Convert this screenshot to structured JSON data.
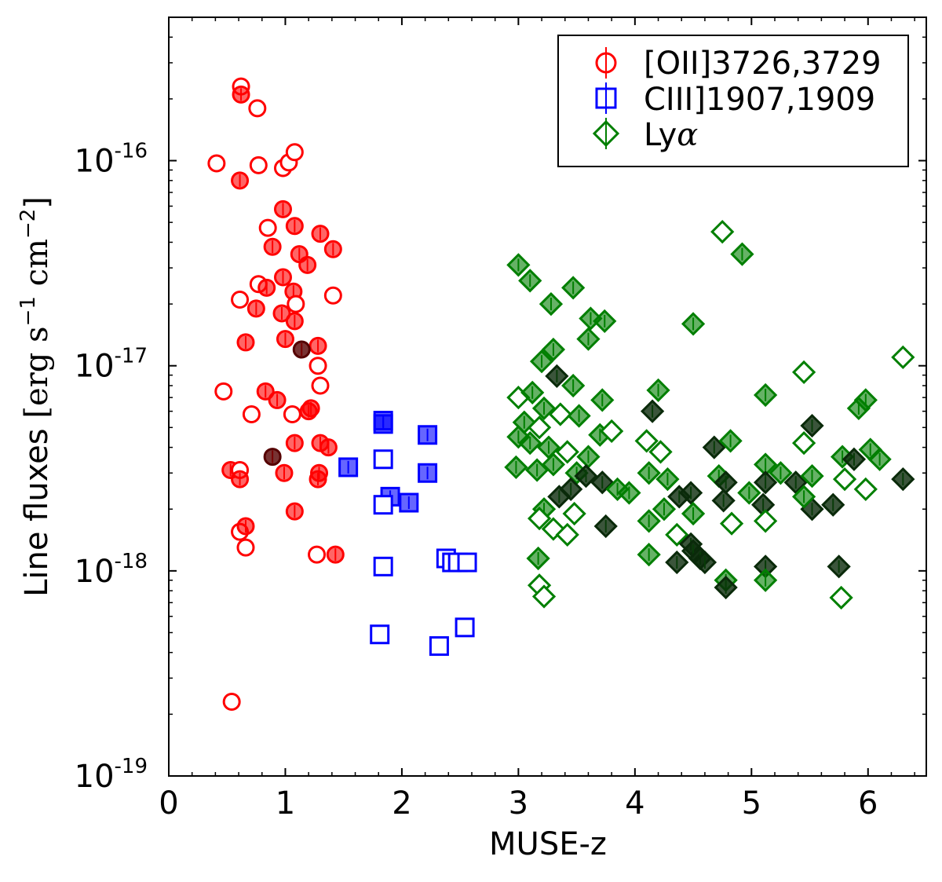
{
  "chart_data": {
    "type": "scatter",
    "title": "",
    "xlabel": "MUSE-z",
    "ylabel": "Line fluxes [erg s⁻¹ cm⁻²]",
    "ylabel_main": "Line fluxes ",
    "ylabel_units": "[erg s",
    "ylabel_sup1": "−1",
    "ylabel_cm": " cm",
    "ylabel_sup2": "−2",
    "ylabel_close": "]",
    "xscale": "linear",
    "yscale": "log",
    "xlim": [
      0,
      6.5
    ],
    "ylim": [
      1e-19,
      5e-16
    ],
    "x_ticks": [
      "0",
      "1",
      "2",
      "3",
      "4",
      "5",
      "6"
    ],
    "y_ticks": [
      {
        "base": "10",
        "exp": "-16",
        "value": 1e-16
      },
      {
        "base": "10",
        "exp": "-17",
        "value": 1e-17
      },
      {
        "base": "10",
        "exp": "-18",
        "value": 1e-18
      },
      {
        "base": "10",
        "exp": "-19",
        "value": 1e-19
      }
    ],
    "legend": {
      "position": "top-right",
      "entries": [
        {
          "label": "[OII]3726,3729",
          "color": "#ff0000",
          "marker": "circle"
        },
        {
          "label": "CIII]1907,1909",
          "color": "#0000ff",
          "marker": "square"
        },
        {
          "label": "Ly",
          "greek": "α",
          "color": "#007f00",
          "marker": "diamond"
        }
      ]
    },
    "series": [
      {
        "name": "[OII]3726,3729",
        "marker": "circle",
        "color": "#ff0000",
        "points": [
          {
            "x": 0.62,
            "y": 2.3e-16,
            "f": "o"
          },
          {
            "x": 0.62,
            "y": 2.1e-16,
            "f": "f"
          },
          {
            "x": 0.76,
            "y": 1.8e-16,
            "f": "o"
          },
          {
            "x": 0.41,
            "y": 9.7e-17,
            "f": "o"
          },
          {
            "x": 0.61,
            "y": 8e-17,
            "f": "f"
          },
          {
            "x": 0.77,
            "y": 9.5e-17,
            "f": "o"
          },
          {
            "x": 0.98,
            "y": 9.2e-17,
            "f": "o"
          },
          {
            "x": 1.03,
            "y": 9.8e-17,
            "f": "o"
          },
          {
            "x": 1.08,
            "y": 1.1e-16,
            "f": "o"
          },
          {
            "x": 0.98,
            "y": 5.8e-17,
            "f": "f"
          },
          {
            "x": 1.08,
            "y": 4.8e-17,
            "f": "f"
          },
          {
            "x": 0.85,
            "y": 4.7e-17,
            "f": "o"
          },
          {
            "x": 1.3,
            "y": 4.4e-17,
            "f": "f"
          },
          {
            "x": 1.41,
            "y": 3.7e-17,
            "f": "f"
          },
          {
            "x": 0.89,
            "y": 3.8e-17,
            "f": "f"
          },
          {
            "x": 1.12,
            "y": 3.5e-17,
            "f": "f"
          },
          {
            "x": 1.19,
            "y": 3.1e-17,
            "f": "f"
          },
          {
            "x": 0.98,
            "y": 2.7e-17,
            "f": "f"
          },
          {
            "x": 0.77,
            "y": 2.5e-17,
            "f": "o"
          },
          {
            "x": 0.84,
            "y": 2.4e-17,
            "f": "f"
          },
          {
            "x": 1.07,
            "y": 2.3e-17,
            "f": "f"
          },
          {
            "x": 0.61,
            "y": 2.1e-17,
            "f": "o"
          },
          {
            "x": 1.41,
            "y": 2.2e-17,
            "f": "o"
          },
          {
            "x": 1.09,
            "y": 2e-17,
            "f": "o"
          },
          {
            "x": 0.75,
            "y": 1.9e-17,
            "f": "f"
          },
          {
            "x": 0.97,
            "y": 1.8e-17,
            "f": "f"
          },
          {
            "x": 1.08,
            "y": 1.65e-17,
            "f": "f"
          },
          {
            "x": 1.0,
            "y": 1.35e-17,
            "f": "f"
          },
          {
            "x": 0.66,
            "y": 1.3e-17,
            "f": "f"
          },
          {
            "x": 1.28,
            "y": 1.25e-17,
            "f": "f"
          },
          {
            "x": 1.14,
            "y": 1.2e-17,
            "f": "d"
          },
          {
            "x": 1.28,
            "y": 1e-17,
            "f": "o"
          },
          {
            "x": 1.3,
            "y": 8e-18,
            "f": "o"
          },
          {
            "x": 0.83,
            "y": 7.5e-18,
            "f": "f"
          },
          {
            "x": 0.47,
            "y": 7.5e-18,
            "f": "o"
          },
          {
            "x": 0.93,
            "y": 6.8e-18,
            "f": "f"
          },
          {
            "x": 1.22,
            "y": 6.2e-18,
            "f": "f"
          },
          {
            "x": 0.71,
            "y": 5.8e-18,
            "f": "o"
          },
          {
            "x": 1.06,
            "y": 5.8e-18,
            "f": "o"
          },
          {
            "x": 1.2,
            "y": 6e-18,
            "f": "f"
          },
          {
            "x": 1.08,
            "y": 4.2e-18,
            "f": "f"
          },
          {
            "x": 1.3,
            "y": 4.2e-18,
            "f": "f"
          },
          {
            "x": 1.37,
            "y": 4e-18,
            "f": "f"
          },
          {
            "x": 0.89,
            "y": 3.6e-18,
            "f": "d"
          },
          {
            "x": 0.53,
            "y": 3.1e-18,
            "f": "f"
          },
          {
            "x": 0.61,
            "y": 3.1e-18,
            "f": "o"
          },
          {
            "x": 0.61,
            "y": 2.8e-18,
            "f": "f"
          },
          {
            "x": 0.99,
            "y": 3e-18,
            "f": "f"
          },
          {
            "x": 1.29,
            "y": 3e-18,
            "f": "f"
          },
          {
            "x": 1.28,
            "y": 2.8e-18,
            "f": "f"
          },
          {
            "x": 0.61,
            "y": 1.55e-18,
            "f": "o"
          },
          {
            "x": 0.66,
            "y": 1.65e-18,
            "f": "f"
          },
          {
            "x": 0.66,
            "y": 1.3e-18,
            "f": "o"
          },
          {
            "x": 1.08,
            "y": 1.95e-18,
            "f": "f"
          },
          {
            "x": 1.27,
            "y": 1.2e-18,
            "f": "o"
          },
          {
            "x": 1.43,
            "y": 1.2e-18,
            "f": "f"
          },
          {
            "x": 0.54,
            "y": 2.3e-19,
            "f": "o"
          }
        ]
      },
      {
        "name": "CIII]1907,1909",
        "marker": "square",
        "color": "#0000ff",
        "points": [
          {
            "x": 1.54,
            "y": 3.2e-18,
            "f": "f"
          },
          {
            "x": 1.84,
            "y": 5.4e-18,
            "f": "f"
          },
          {
            "x": 1.84,
            "y": 5.2e-18,
            "f": "f"
          },
          {
            "x": 2.22,
            "y": 4.6e-18,
            "f": "f"
          },
          {
            "x": 2.22,
            "y": 3e-18,
            "f": "f"
          },
          {
            "x": 1.84,
            "y": 3.5e-18,
            "f": "o"
          },
          {
            "x": 1.9,
            "y": 2.3e-18,
            "f": "f"
          },
          {
            "x": 2.06,
            "y": 2.15e-18,
            "f": "f"
          },
          {
            "x": 1.84,
            "y": 2.1e-18,
            "f": "o"
          },
          {
            "x": 1.84,
            "y": 1.05e-18,
            "f": "o"
          },
          {
            "x": 1.81,
            "y": 4.9e-19,
            "f": "o"
          },
          {
            "x": 2.38,
            "y": 1.15e-18,
            "f": "o"
          },
          {
            "x": 2.43,
            "y": 1.1e-18,
            "f": "o"
          },
          {
            "x": 2.48,
            "y": 1.1e-18,
            "f": "o"
          },
          {
            "x": 2.56,
            "y": 1.1e-18,
            "f": "o"
          },
          {
            "x": 2.32,
            "y": 4.3e-19,
            "f": "o"
          },
          {
            "x": 2.54,
            "y": 5.3e-19,
            "f": "o"
          }
        ]
      },
      {
        "name": "Lyα",
        "marker": "diamond",
        "color": "#007f00",
        "points": [
          {
            "x": 3.0,
            "y": 3.1e-17,
            "f": "f"
          },
          {
            "x": 3.1,
            "y": 2.6e-17,
            "f": "f"
          },
          {
            "x": 3.28,
            "y": 2e-17,
            "f": "f"
          },
          {
            "x": 3.47,
            "y": 2.4e-17,
            "f": "f"
          },
          {
            "x": 3.62,
            "y": 1.7e-17,
            "f": "f"
          },
          {
            "x": 3.74,
            "y": 1.65e-17,
            "f": "f"
          },
          {
            "x": 3.3,
            "y": 1.2e-17,
            "f": "f"
          },
          {
            "x": 3.2,
            "y": 1.05e-17,
            "f": "f"
          },
          {
            "x": 3.6,
            "y": 1.35e-17,
            "f": "f"
          },
          {
            "x": 3.33,
            "y": 8.9e-18,
            "f": "d"
          },
          {
            "x": 3.47,
            "y": 8e-18,
            "f": "f"
          },
          {
            "x": 3.0,
            "y": 7e-18,
            "f": "o"
          },
          {
            "x": 3.12,
            "y": 7.4e-18,
            "f": "f"
          },
          {
            "x": 3.22,
            "y": 6.2e-18,
            "f": "f"
          },
          {
            "x": 3.36,
            "y": 5.8e-18,
            "f": "o"
          },
          {
            "x": 3.52,
            "y": 5.7e-18,
            "f": "f"
          },
          {
            "x": 3.72,
            "y": 6.8e-18,
            "f": "f"
          },
          {
            "x": 3.05,
            "y": 5.3e-18,
            "f": "f"
          },
          {
            "x": 3.18,
            "y": 5e-18,
            "f": "o"
          },
          {
            "x": 3.0,
            "y": 4.5e-18,
            "f": "f"
          },
          {
            "x": 3.1,
            "y": 4.2e-18,
            "f": "f"
          },
          {
            "x": 3.26,
            "y": 4e-18,
            "f": "f"
          },
          {
            "x": 3.42,
            "y": 3.8e-18,
            "f": "o"
          },
          {
            "x": 3.6,
            "y": 3.6e-18,
            "f": "f"
          },
          {
            "x": 3.7,
            "y": 4.6e-18,
            "f": "f"
          },
          {
            "x": 3.8,
            "y": 4.8e-18,
            "f": "o"
          },
          {
            "x": 2.98,
            "y": 3.2e-18,
            "f": "f"
          },
          {
            "x": 3.16,
            "y": 3.1e-18,
            "f": "f"
          },
          {
            "x": 3.3,
            "y": 3.3e-18,
            "f": "f"
          },
          {
            "x": 3.5,
            "y": 3e-18,
            "f": "f"
          },
          {
            "x": 3.58,
            "y": 2.9e-18,
            "f": "d"
          },
          {
            "x": 3.72,
            "y": 2.7e-18,
            "f": "d"
          },
          {
            "x": 3.85,
            "y": 2.5e-18,
            "f": "f"
          },
          {
            "x": 3.35,
            "y": 2.3e-18,
            "f": "d"
          },
          {
            "x": 3.45,
            "y": 2.5e-18,
            "f": "d"
          },
          {
            "x": 3.22,
            "y": 2e-18,
            "f": "f"
          },
          {
            "x": 3.48,
            "y": 1.9e-18,
            "f": "o"
          },
          {
            "x": 3.18,
            "y": 1.8e-18,
            "f": "o"
          },
          {
            "x": 3.3,
            "y": 1.6e-18,
            "f": "o"
          },
          {
            "x": 3.42,
            "y": 1.5e-18,
            "f": "o"
          },
          {
            "x": 3.75,
            "y": 1.65e-18,
            "f": "d"
          },
          {
            "x": 3.17,
            "y": 1.15e-18,
            "f": "f"
          },
          {
            "x": 3.18,
            "y": 8.5e-19,
            "f": "o"
          },
          {
            "x": 3.22,
            "y": 7.5e-19,
            "f": "o"
          },
          {
            "x": 3.95,
            "y": 2.4e-18,
            "f": "f"
          },
          {
            "x": 4.15,
            "y": 6e-18,
            "f": "d"
          },
          {
            "x": 4.2,
            "y": 7.6e-18,
            "f": "f"
          },
          {
            "x": 4.1,
            "y": 4.3e-18,
            "f": "o"
          },
          {
            "x": 4.22,
            "y": 3.8e-18,
            "f": "o"
          },
          {
            "x": 4.12,
            "y": 3e-18,
            "f": "f"
          },
          {
            "x": 4.28,
            "y": 2.8e-18,
            "f": "f"
          },
          {
            "x": 4.38,
            "y": 2.3e-18,
            "f": "d"
          },
          {
            "x": 4.25,
            "y": 2e-18,
            "f": "f"
          },
          {
            "x": 4.12,
            "y": 1.75e-18,
            "f": "f"
          },
          {
            "x": 4.36,
            "y": 1.5e-18,
            "f": "o"
          },
          {
            "x": 4.36,
            "y": 1.1e-18,
            "f": "d"
          },
          {
            "x": 4.12,
            "y": 1.2e-18,
            "f": "f"
          },
          {
            "x": 4.48,
            "y": 2.4e-18,
            "f": "d"
          },
          {
            "x": 4.5,
            "y": 1.9e-18,
            "f": "f"
          },
          {
            "x": 4.48,
            "y": 1.35e-18,
            "f": "d"
          },
          {
            "x": 4.5,
            "y": 1.25e-18,
            "f": "d"
          },
          {
            "x": 4.56,
            "y": 1.15e-18,
            "f": "d"
          },
          {
            "x": 4.6,
            "y": 1.1e-18,
            "f": "d"
          },
          {
            "x": 4.5,
            "y": 1.6e-17,
            "f": "f"
          },
          {
            "x": 4.75,
            "y": 4.5e-17,
            "f": "o"
          },
          {
            "x": 4.92,
            "y": 3.5e-17,
            "f": "f"
          },
          {
            "x": 4.68,
            "y": 4e-18,
            "f": "d"
          },
          {
            "x": 4.82,
            "y": 4.3e-18,
            "f": "f"
          },
          {
            "x": 4.72,
            "y": 2.9e-18,
            "f": "f"
          },
          {
            "x": 4.78,
            "y": 2.7e-18,
            "f": "d"
          },
          {
            "x": 4.76,
            "y": 2.2e-18,
            "f": "d"
          },
          {
            "x": 4.83,
            "y": 1.7e-18,
            "f": "o"
          },
          {
            "x": 4.78,
            "y": 9e-19,
            "f": "f"
          },
          {
            "x": 4.78,
            "y": 8.3e-19,
            "f": "d"
          },
          {
            "x": 4.98,
            "y": 2.4e-18,
            "f": "f"
          },
          {
            "x": 5.12,
            "y": 7.2e-18,
            "f": "f"
          },
          {
            "x": 5.12,
            "y": 3.3e-18,
            "f": "f"
          },
          {
            "x": 5.12,
            "y": 2.7e-18,
            "f": "d"
          },
          {
            "x": 5.1,
            "y": 2.1e-18,
            "f": "d"
          },
          {
            "x": 5.12,
            "y": 1.75e-18,
            "f": "o"
          },
          {
            "x": 5.12,
            "y": 1.05e-18,
            "f": "d"
          },
          {
            "x": 5.12,
            "y": 9e-19,
            "f": "f"
          },
          {
            "x": 5.25,
            "y": 3e-18,
            "f": "f"
          },
          {
            "x": 5.38,
            "y": 2.7e-18,
            "f": "d"
          },
          {
            "x": 5.45,
            "y": 9.3e-18,
            "f": "o"
          },
          {
            "x": 5.45,
            "y": 4.2e-18,
            "f": "o"
          },
          {
            "x": 5.52,
            "y": 5.1e-18,
            "f": "d"
          },
          {
            "x": 5.52,
            "y": 2e-18,
            "f": "d"
          },
          {
            "x": 5.52,
            "y": 2.9e-18,
            "f": "f"
          },
          {
            "x": 5.45,
            "y": 2.3e-18,
            "f": "f"
          },
          {
            "x": 5.7,
            "y": 2.1e-18,
            "f": "d"
          },
          {
            "x": 5.75,
            "y": 1.05e-18,
            "f": "d"
          },
          {
            "x": 5.77,
            "y": 7.4e-19,
            "f": "o"
          },
          {
            "x": 5.78,
            "y": 3.6e-18,
            "f": "f"
          },
          {
            "x": 5.88,
            "y": 3.5e-18,
            "f": "d"
          },
          {
            "x": 5.8,
            "y": 2.8e-18,
            "f": "o"
          },
          {
            "x": 5.92,
            "y": 6.2e-18,
            "f": "f"
          },
          {
            "x": 5.98,
            "y": 6.8e-18,
            "f": "f"
          },
          {
            "x": 5.98,
            "y": 2.5e-18,
            "f": "o"
          },
          {
            "x": 6.02,
            "y": 3.9e-18,
            "f": "f"
          },
          {
            "x": 6.1,
            "y": 3.5e-18,
            "f": "f"
          },
          {
            "x": 6.3,
            "y": 1.1e-17,
            "f": "o"
          },
          {
            "x": 6.3,
            "y": 2.8e-18,
            "f": "d"
          }
        ]
      }
    ]
  }
}
